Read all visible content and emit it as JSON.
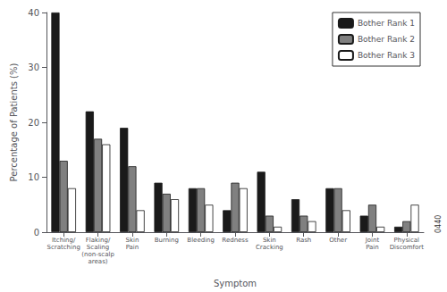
{
  "chart_data": {
    "type": "bar",
    "categories": [
      "Itching/\nScratching",
      "Flaking/\nScaling\n(non-scalp\nareas)",
      "Skin\nPain",
      "Burning",
      "Bleeding",
      "Redness",
      "Skin\nCracking",
      "Rash",
      "Other",
      "Joint\nPain",
      "Physical\nDiscomfort"
    ],
    "series": [
      {
        "name": "Bother Rank 1",
        "color": "#1a1a1a",
        "values": [
          40,
          22,
          19,
          9,
          8,
          4,
          11,
          6,
          8,
          3,
          1
        ]
      },
      {
        "name": "Bother Rank 2",
        "color": "#808080",
        "values": [
          13,
          17,
          12,
          7,
          8,
          9,
          3,
          3,
          8,
          5,
          2
        ]
      },
      {
        "name": "Bother Rank 3",
        "color": "#ffffff",
        "values": [
          8,
          16,
          4,
          6,
          5,
          8,
          1,
          2,
          4,
          1,
          5
        ]
      }
    ],
    "xlabel": "Symptom",
    "ylabel": "Percentage of Patients (%)",
    "ylim": [
      0,
      40
    ],
    "yticks": [
      0,
      10,
      20,
      30,
      40
    ],
    "legend": "upper right",
    "grid": false,
    "annotations": [
      "0440"
    ]
  }
}
